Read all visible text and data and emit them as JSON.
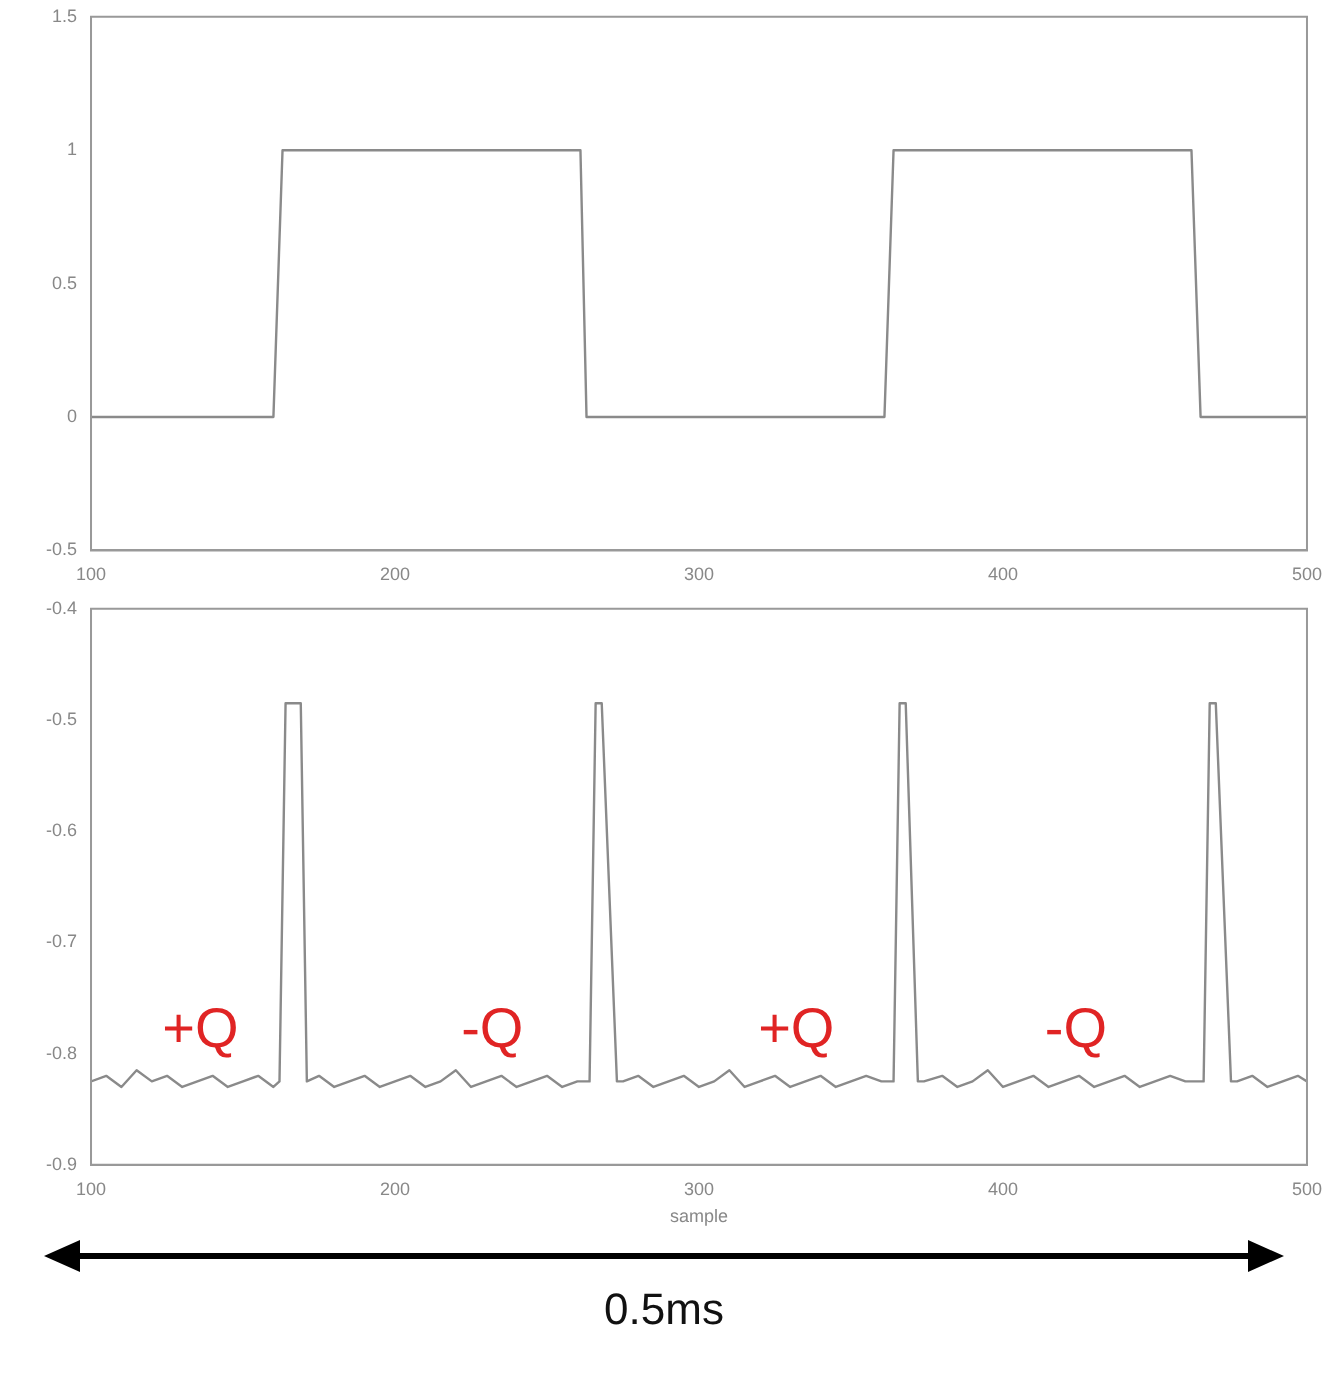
{
  "chart_data": [
    {
      "type": "line",
      "x": [
        100,
        160,
        163,
        261,
        263,
        361,
        364,
        462,
        465,
        500
      ],
      "values": [
        0,
        0,
        1,
        1,
        0,
        0,
        1,
        1,
        0,
        0
      ],
      "color": "#8a8a8a",
      "xlim": [
        100,
        500
      ],
      "xticks": [
        100,
        200,
        300,
        400,
        500
      ],
      "ylim": [
        -0.5,
        1.5
      ],
      "yticks": [
        -0.5,
        0.0,
        0.5,
        1.0,
        1.5
      ],
      "grid": false,
      "legend": false,
      "marker": "none",
      "line_style": "solid"
    },
    {
      "type": "line",
      "x": [
        100,
        105,
        110,
        115,
        120,
        125,
        130,
        135,
        140,
        145,
        150,
        155,
        160,
        162,
        164,
        169,
        171,
        175,
        180,
        185,
        190,
        195,
        200,
        205,
        210,
        215,
        220,
        225,
        230,
        235,
        240,
        245,
        250,
        255,
        260,
        264,
        266,
        268,
        273,
        275,
        280,
        285,
        290,
        295,
        300,
        305,
        310,
        315,
        320,
        325,
        330,
        335,
        340,
        345,
        350,
        355,
        360,
        364,
        366,
        368,
        372,
        374,
        380,
        385,
        390,
        395,
        400,
        405,
        410,
        415,
        420,
        425,
        430,
        435,
        440,
        445,
        450,
        455,
        460,
        466,
        468,
        470,
        475,
        477,
        482,
        487,
        492,
        497,
        500
      ],
      "values": [
        -0.825,
        -0.82,
        -0.83,
        -0.815,
        -0.825,
        -0.82,
        -0.83,
        -0.825,
        -0.82,
        -0.83,
        -0.825,
        -0.82,
        -0.83,
        -0.825,
        -0.485,
        -0.485,
        -0.825,
        -0.82,
        -0.83,
        -0.825,
        -0.82,
        -0.83,
        -0.825,
        -0.82,
        -0.83,
        -0.825,
        -0.815,
        -0.83,
        -0.825,
        -0.82,
        -0.83,
        -0.825,
        -0.82,
        -0.83,
        -0.825,
        -0.825,
        -0.485,
        -0.485,
        -0.825,
        -0.825,
        -0.82,
        -0.83,
        -0.825,
        -0.82,
        -0.83,
        -0.825,
        -0.815,
        -0.83,
        -0.825,
        -0.82,
        -0.83,
        -0.825,
        -0.82,
        -0.83,
        -0.825,
        -0.82,
        -0.825,
        -0.825,
        -0.485,
        -0.485,
        -0.825,
        -0.825,
        -0.82,
        -0.83,
        -0.825,
        -0.815,
        -0.83,
        -0.825,
        -0.82,
        -0.83,
        -0.825,
        -0.82,
        -0.83,
        -0.825,
        -0.82,
        -0.83,
        -0.825,
        -0.82,
        -0.825,
        -0.825,
        -0.485,
        -0.485,
        -0.825,
        -0.825,
        -0.82,
        -0.83,
        -0.825,
        -0.82,
        -0.825
      ],
      "color": "#8a8a8a",
      "xlim": [
        100,
        500
      ],
      "xticks": [
        100,
        200,
        300,
        400,
        500
      ],
      "ylim": [
        -0.9,
        -0.4
      ],
      "yticks": [
        -0.9,
        -0.8,
        -0.7,
        -0.6,
        -0.5,
        -0.4
      ],
      "xlabel": "sample",
      "grid": false,
      "legend": false,
      "marker": "none",
      "line_style": "solid",
      "annotations": [
        "+Q",
        "-Q",
        "+Q",
        "-Q",
        "0.5ms"
      ]
    }
  ]
}
